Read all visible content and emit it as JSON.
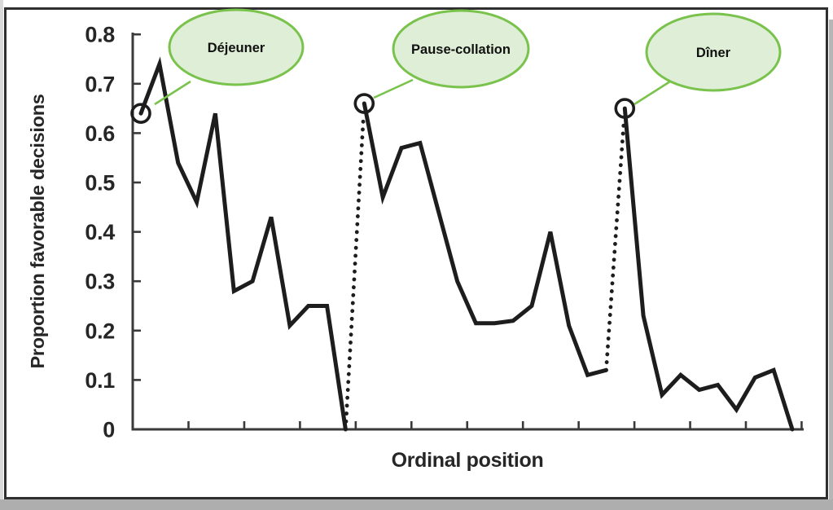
{
  "figure": {
    "y_axis": {
      "label": "Proportion favorable decisions",
      "tick_labels": [
        "0.8",
        "0.7",
        "0.6",
        "0.5",
        "0.4",
        "0.3",
        "0.2",
        "0.1",
        "0"
      ],
      "tick_values": [
        0.8,
        0.7,
        0.6,
        0.5,
        0.4,
        0.3,
        0.2,
        0.1,
        0
      ],
      "range": [
        0,
        0.8
      ]
    },
    "x_axis": {
      "label": "Ordinal position",
      "tick_count": 12
    },
    "callouts": [
      {
        "label": "Déjeuner"
      },
      {
        "label": "Pause-collation"
      },
      {
        "label": "Dîner"
      }
    ],
    "colors": {
      "line": "#1d1d1d",
      "axis": "#3a3a3a",
      "text": "#262626",
      "callout_fill": "#dfeed6",
      "callout_border": "#79c24c",
      "frame": "#2f2f2f"
    }
  },
  "chart_data": {
    "type": "line",
    "title": "",
    "xlabel": "Ordinal position",
    "ylabel": "Proportion favorable decisions",
    "ylim": [
      0,
      0.8
    ],
    "x_tick_count": 12,
    "session_separator_style": "dotted vertical connector",
    "session_start_marker": "open circle with callout",
    "series": [
      {
        "name": "Déjeuner",
        "values": [
          0.64,
          0.74,
          0.54,
          0.46,
          0.64,
          0.28,
          0.3,
          0.43,
          0.21,
          0.25,
          0.25,
          0.0
        ]
      },
      {
        "name": "Pause-collation",
        "values": [
          0.66,
          0.47,
          0.57,
          0.58,
          0.44,
          0.3,
          0.215,
          0.215,
          0.22,
          0.25,
          0.4,
          0.21,
          0.11,
          0.12
        ]
      },
      {
        "name": "Dîner",
        "values": [
          0.65,
          0.23,
          0.07,
          0.11,
          0.08,
          0.09,
          0.04,
          0.105,
          0.12,
          0.0
        ]
      }
    ]
  }
}
